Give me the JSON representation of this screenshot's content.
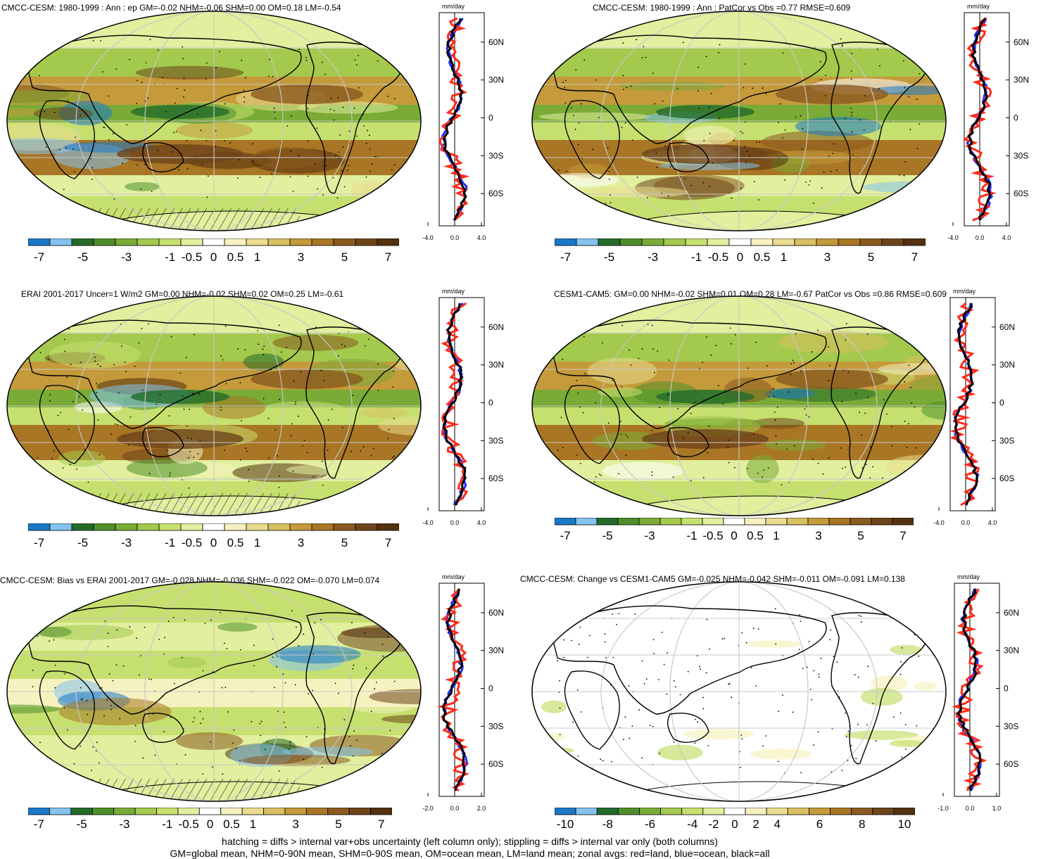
{
  "palette": {
    "ocean_fill": "#ffffff",
    "map_outline": "#000000",
    "zonal_colors": {
      "land": "#ff2a1a",
      "ocean": "#1f2bff",
      "all": "#000000"
    },
    "colorbar_colors": [
      "#1b78c8",
      "#83c3ee",
      "#246b2a",
      "#4e8f2a",
      "#7aab36",
      "#a3c94d",
      "#c6e06f",
      "#e1ef9e",
      "#ffffff",
      "#f6f2c0",
      "#eadc8e",
      "#d8bf61",
      "#c49a3a",
      "#a87625",
      "#8a5a1f",
      "#6e441a",
      "#54320f"
    ]
  },
  "units": "mm/day",
  "panels": [
    {
      "id": "p1",
      "title": "CMCC-CESM: 1980-1999 : Ann : ep GM=-0.02 NHM=-0.06 SHM=0.00 OM=0.18 LM=-0.54",
      "cbar_labels": [
        "-7",
        "-5",
        "-3",
        "-1",
        "-0.5",
        "0",
        "0.5",
        "1",
        "3",
        "5",
        "7"
      ],
      "lat_labels": [
        "60N",
        "30N",
        "0",
        "30S",
        "60S"
      ],
      "xticks": [
        "-4.0",
        "0.0",
        "4.0"
      ],
      "hatching": true
    },
    {
      "id": "p2",
      "title": "CMCC-CESM: 1980-1999 : Ann : PatCor vs Obs =0.77 RMSE=0.609",
      "cbar_labels": [
        "-7",
        "-5",
        "-3",
        "-1",
        "-0.5",
        "0",
        "0.5",
        "1",
        "3",
        "5",
        "7"
      ],
      "lat_labels": [
        "60N",
        "30N",
        "0",
        "30S",
        "60S"
      ],
      "xticks": [
        "-4.0",
        "0.0",
        "4.0"
      ],
      "hatching": false
    },
    {
      "id": "p3",
      "title": "ERAI 2001-2017 Uncer=1 W/m2 GM=0.00 NHM=-0.02 SHM=0.02 OM=0.25 LM=-0.61",
      "cbar_labels": [
        "-7",
        "-5",
        "-3",
        "-1",
        "-0.5",
        "0",
        "0.5",
        "1",
        "3",
        "5",
        "7"
      ],
      "lat_labels": [
        "60N",
        "30N",
        "0",
        "30S",
        "60S"
      ],
      "xticks": [
        "-4.0",
        "0.0",
        "4.0"
      ],
      "hatching": true
    },
    {
      "id": "p4",
      "title": "CESM1-CAM5: GM=0.00 NHM=-0.02 SHM=0.01 OM=0.28 LM=-0.67 PatCor vs Obs =0.86 RMSE=0.609",
      "cbar_labels": [
        "-7",
        "-5",
        "-3",
        "-1",
        "-0.5",
        "0",
        "0.5",
        "1",
        "3",
        "5",
        "7"
      ],
      "lat_labels": [
        "60N",
        "30N",
        "0",
        "30S",
        "60S"
      ],
      "xticks": [
        "-4.0",
        "0.0",
        "4.0"
      ],
      "hatching": false
    },
    {
      "id": "p5",
      "title": "CMCC-CESM: Bias vs ERAI 2001-2017 GM=-0.028 NHM=-0.036 SHM=-0.022 OM=-0.070 LM=0.074",
      "cbar_labels": [
        "-7",
        "-5",
        "-3",
        "-1",
        "-0.5",
        "0",
        "0.5",
        "1",
        "3",
        "5",
        "7"
      ],
      "lat_labels": [
        "60N",
        "30N",
        "0",
        "30S",
        "60S"
      ],
      "xticks": [
        "-2.0",
        "0.0",
        "2.0"
      ],
      "hatching": true
    },
    {
      "id": "p6",
      "title": "CMCC-CESM: Change vs CESM1-CAM5 GM=-0.025 NHM=-0.042 SHM=-0.011 OM=-0.091 LM=0.138",
      "cbar_labels": [
        "-10",
        "-8",
        "-6",
        "-4",
        "-2",
        "0",
        "2",
        "4",
        "6",
        "8",
        "10"
      ],
      "lat_labels": [
        "60N",
        "30N",
        "0",
        "30S",
        "60S"
      ],
      "xticks": [
        "-1.0",
        "0.0",
        "1.0"
      ],
      "hatching": false
    }
  ],
  "footer": {
    "line1": "hatching = diffs > internal var+obs uncertainty (left column only); stippling = diffs > internal var only (both columns)",
    "line2": "GM=global mean, NHM=0-90N mean, SHM=0-90S mean, OM=ocean mean, LM=land mean; zonal avgs: red=land, blue=ocean, black=all"
  }
}
